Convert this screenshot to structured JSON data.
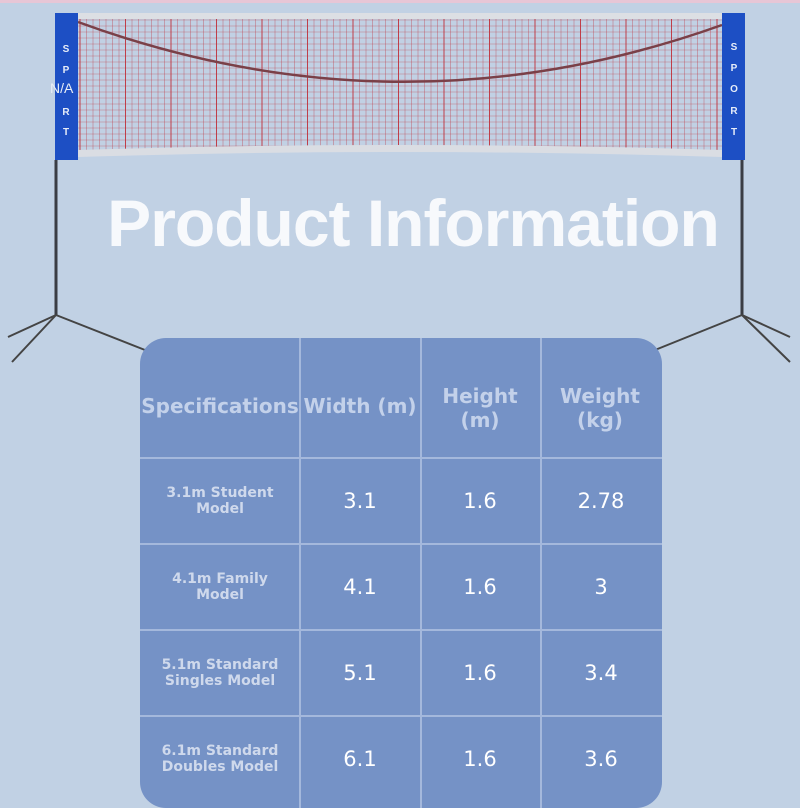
{
  "title": "Product Information",
  "banner_text": [
    "S",
    "P",
    "O",
    "R",
    "T"
  ],
  "left_banner_overlay": "N/A",
  "colors": {
    "background": "#c1d1e4",
    "table": "#7592c6",
    "banner": "#1d4fc4",
    "net_lines": "#c0303a"
  },
  "table": {
    "headers": [
      "Specifications",
      "Width (m)",
      "Height (m)",
      "Weight (kg)"
    ],
    "rows": [
      {
        "model": "3.1m Student Model",
        "width": "3.1",
        "height": "1.6",
        "weight": "2.78"
      },
      {
        "model": "4.1m Family Model",
        "width": "4.1",
        "height": "1.6",
        "weight": "3"
      },
      {
        "model": "5.1m Standard Singles Model",
        "width": "5.1",
        "height": "1.6",
        "weight": "3.4"
      },
      {
        "model": "6.1m Standard Doubles Model",
        "width": "6.1",
        "height": "1.6",
        "weight": "3.6"
      }
    ]
  }
}
